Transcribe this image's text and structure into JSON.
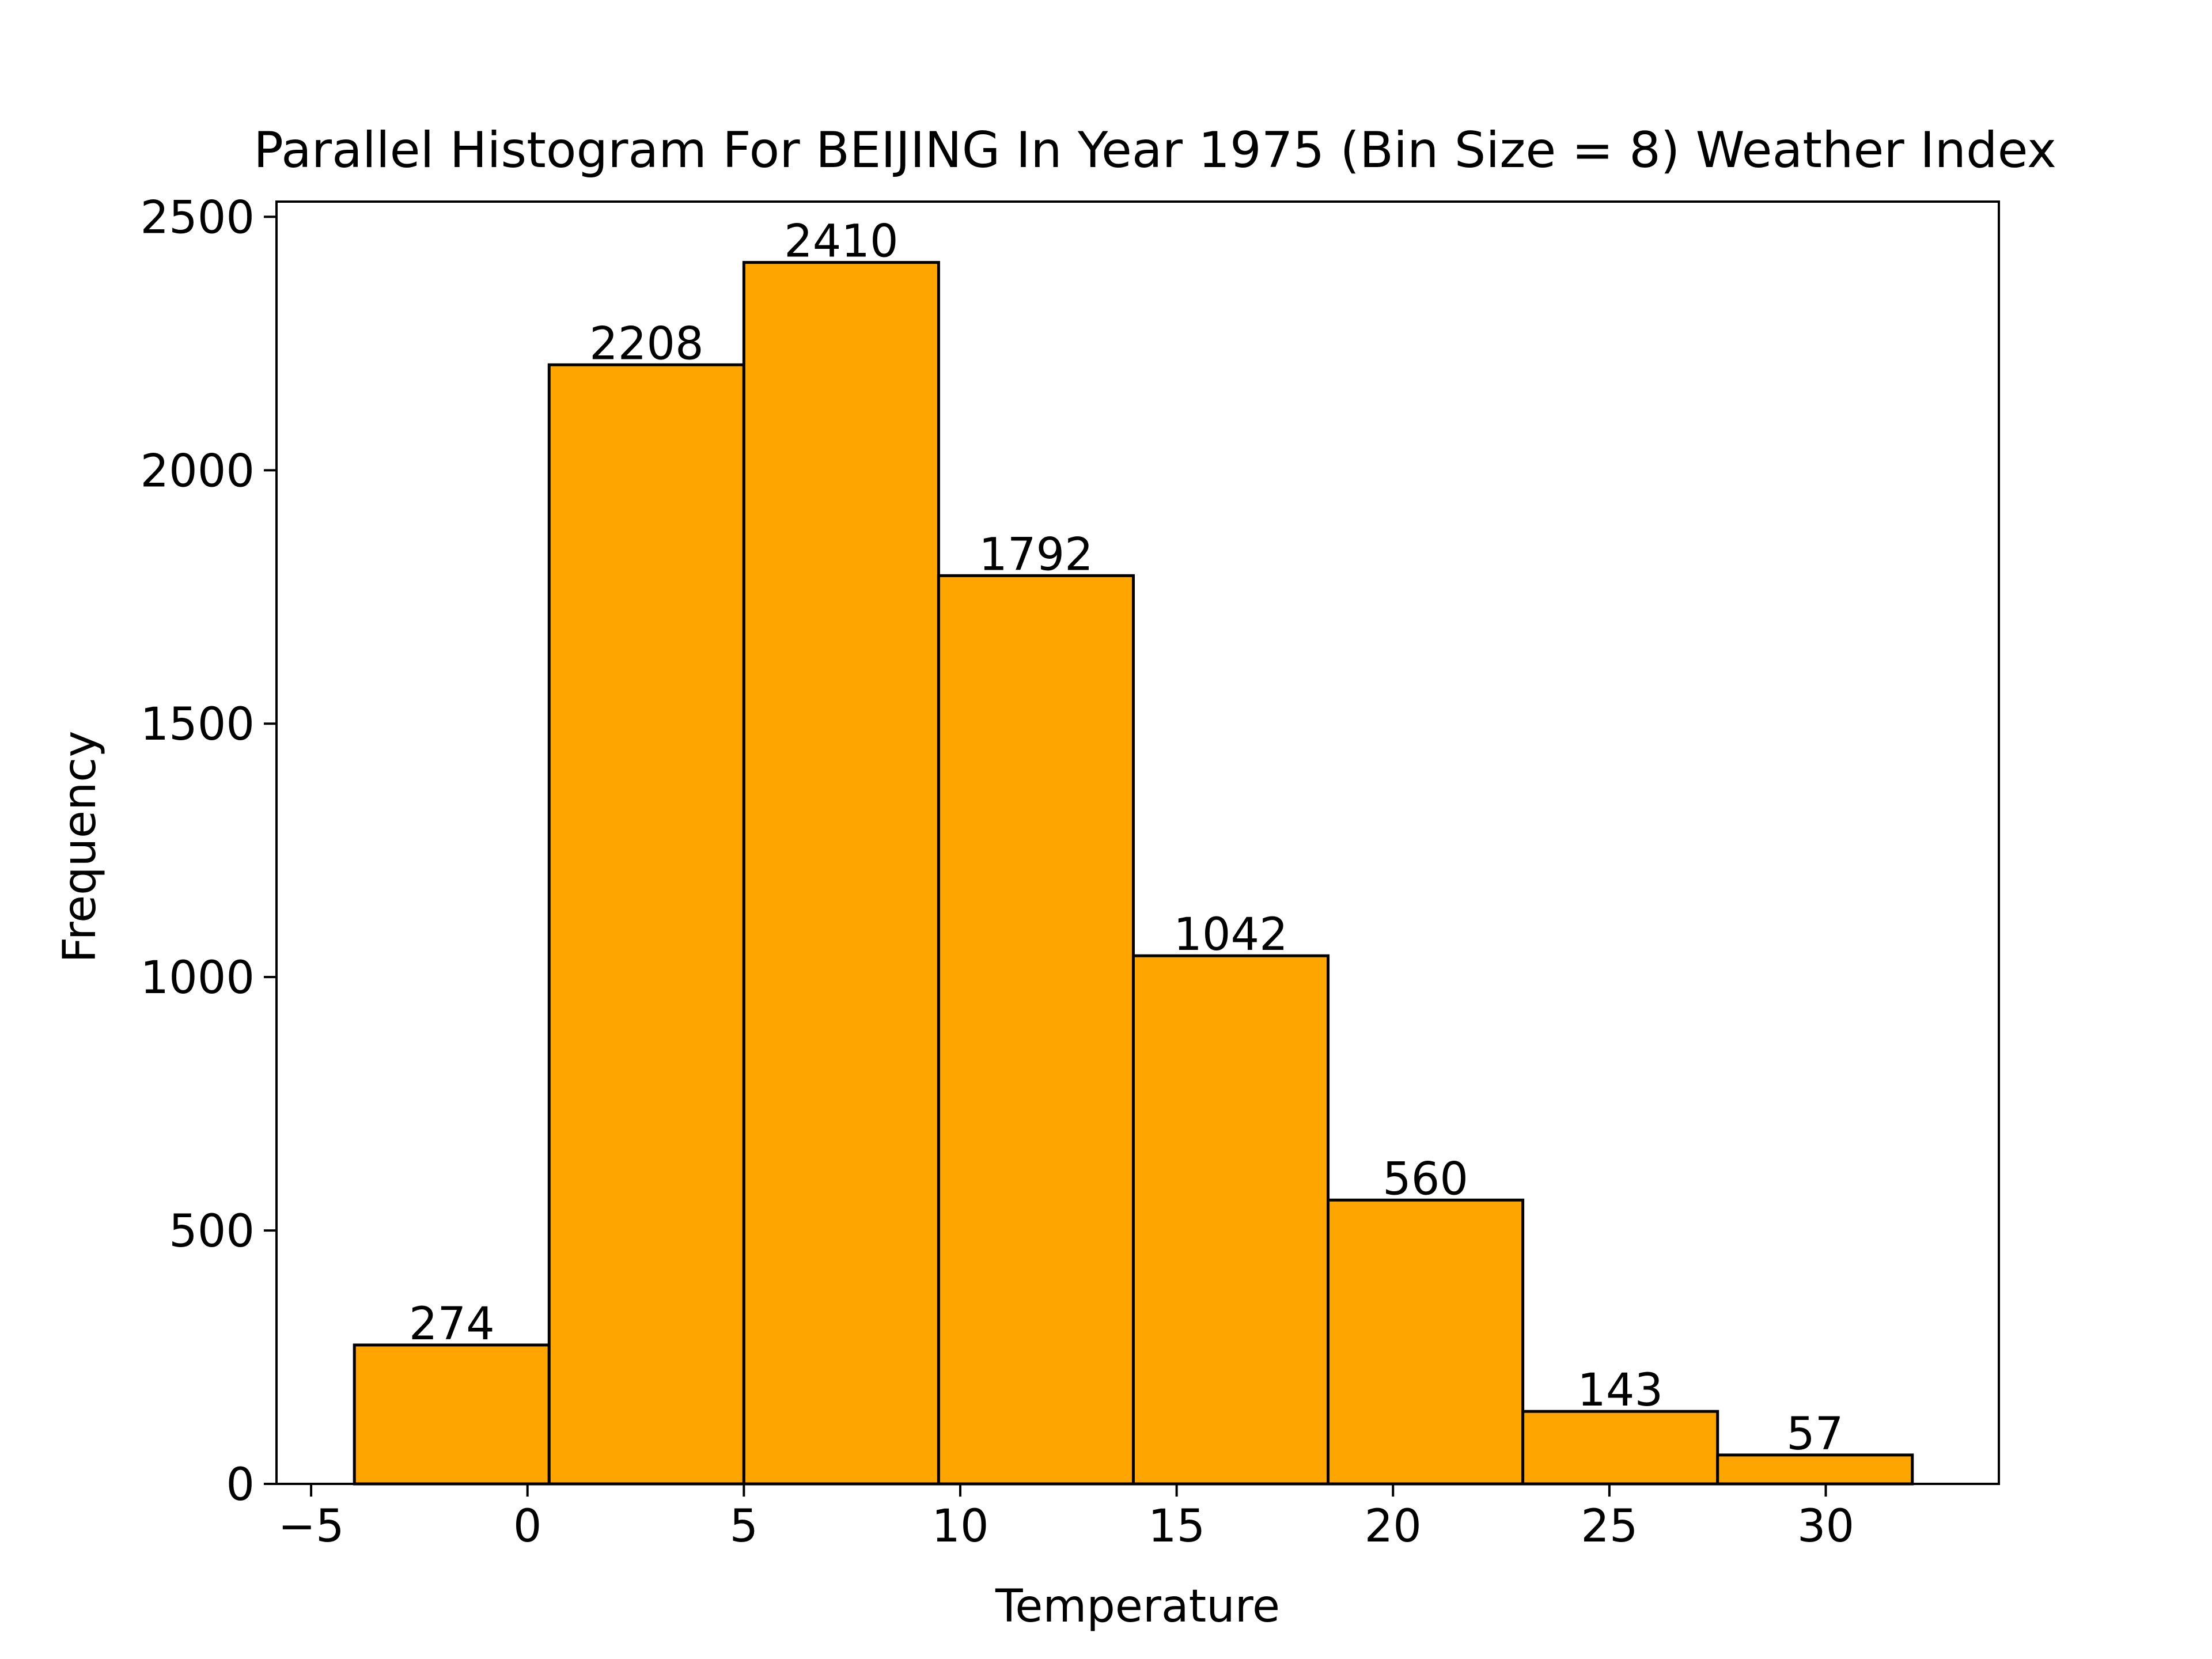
{
  "chart_data": {
    "type": "bar",
    "title": "Parallel Histogram For BEIJING In Year 1975 (Bin Size = 8) Weather Index",
    "xlabel": "Temperature",
    "ylabel": "Frequency",
    "bin_edges": [
      -4.0,
      0.5,
      5.0,
      9.5,
      14.0,
      18.5,
      23.0,
      27.5,
      32.0
    ],
    "values": [
      274,
      2208,
      2410,
      1792,
      1042,
      560,
      143,
      57
    ],
    "bar_labels": [
      "274",
      "2208",
      "2410",
      "1792",
      "1042",
      "560",
      "143",
      "57"
    ],
    "xlim": [
      -5.8,
      34
    ],
    "ylim": [
      0,
      2530
    ],
    "x_ticks": [
      -5,
      0,
      5,
      10,
      15,
      20,
      25,
      30
    ],
    "x_tick_labels": [
      "−5",
      "0",
      "5",
      "10",
      "15",
      "20",
      "25",
      "30"
    ],
    "y_ticks": [
      0,
      500,
      1000,
      1500,
      2000,
      2500
    ],
    "y_tick_labels": [
      "0",
      "500",
      "1000",
      "1500",
      "2000",
      "2500"
    ],
    "grid": false,
    "bar_color": "#ffa500",
    "edge_color": "#000000"
  }
}
